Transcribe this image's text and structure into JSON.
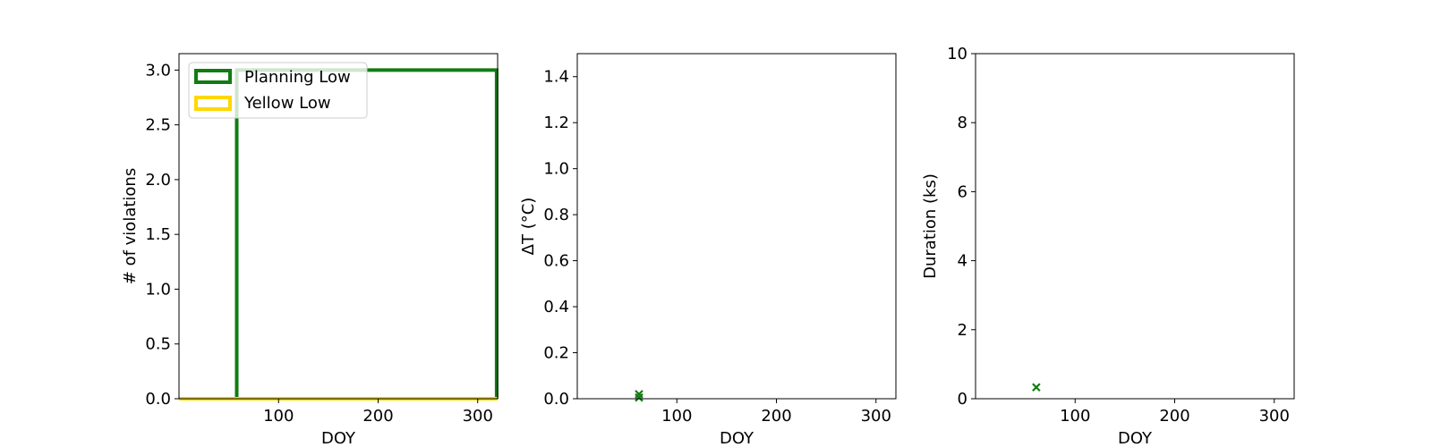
{
  "chart_data": [
    {
      "type": "step",
      "xlabel": "DOY",
      "ylabel": "# of violations",
      "xlim": [
        0,
        320
      ],
      "ylim": [
        0,
        3.15
      ],
      "xticks": [
        100,
        200,
        300
      ],
      "yticks": [
        0.0,
        0.5,
        1.0,
        1.5,
        2.0,
        2.5,
        3.0
      ],
      "ytick_decimals": 1,
      "grid": false,
      "legend": {
        "placement": "upper-left",
        "entries": [
          "Planning Low",
          "Yellow Low"
        ]
      },
      "series": [
        {
          "name": "Planning Low",
          "color": "#117c11",
          "x": [
            0,
            58,
            58,
            319,
            319
          ],
          "y": [
            0,
            0,
            3,
            3,
            0
          ]
        },
        {
          "name": "Yellow Low",
          "color": "#ffd700",
          "x": [
            0,
            320
          ],
          "y": [
            0,
            0
          ]
        }
      ]
    },
    {
      "type": "scatter",
      "xlabel": "DOY",
      "ylabel": "ΔT (°C)",
      "xlim": [
        0,
        320
      ],
      "ylim": [
        0,
        1.5
      ],
      "xticks": [
        100,
        200,
        300
      ],
      "yticks": [
        0.0,
        0.2,
        0.4,
        0.6,
        0.8,
        1.0,
        1.2,
        1.4
      ],
      "ytick_decimals": 1,
      "grid": false,
      "series": [
        {
          "marker": "x",
          "color": "#117c11",
          "x": [
            62,
            62
          ],
          "y": [
            0.02,
            0.005
          ]
        }
      ]
    },
    {
      "type": "scatter",
      "xlabel": "DOY",
      "ylabel": "Duration (ks)",
      "xlim": [
        0,
        320
      ],
      "ylim": [
        0,
        10
      ],
      "xticks": [
        100,
        200,
        300
      ],
      "yticks": [
        0,
        2,
        4,
        6,
        8,
        10
      ],
      "ytick_decimals": 0,
      "grid": false,
      "series": [
        {
          "marker": "x",
          "color": "#117c11",
          "x": [
            61
          ],
          "y": [
            0.33
          ]
        }
      ]
    }
  ]
}
